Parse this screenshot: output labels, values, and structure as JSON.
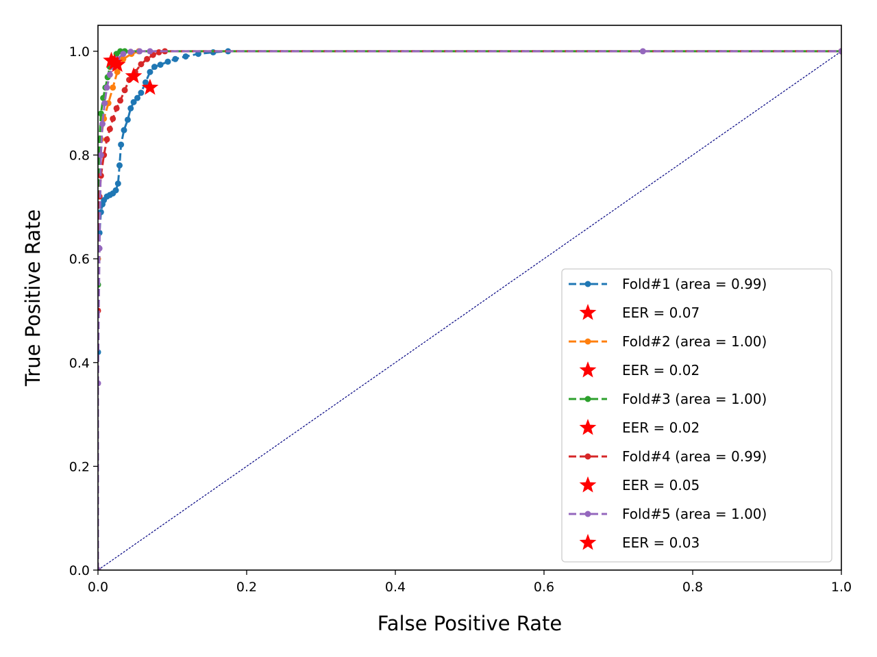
{
  "chart_data": {
    "type": "line",
    "title": "",
    "xlabel": "False Positive Rate",
    "ylabel": "True Positive Rate",
    "xlim": [
      0.0,
      1.0
    ],
    "ylim": [
      0.0,
      1.05
    ],
    "xticks": [
      "0.0",
      "0.2",
      "0.4",
      "0.6",
      "0.8",
      "1.0"
    ],
    "yticks": [
      "0.0",
      "0.2",
      "0.4",
      "0.6",
      "0.8",
      "1.0"
    ],
    "grid": false,
    "legend_position": "bottom-right",
    "diagonal": {
      "x": [
        0,
        1
      ],
      "y": [
        0,
        1
      ],
      "color": "#000080",
      "style": "dashed"
    },
    "series": [
      {
        "name": "Fold#1 (area = 0.99)",
        "color": "#1f77b4",
        "x": [
          0.0,
          0.0,
          0.002,
          0.004,
          0.006,
          0.008,
          0.012,
          0.016,
          0.02,
          0.024,
          0.027,
          0.029,
          0.031,
          0.035,
          0.04,
          0.044,
          0.048,
          0.053,
          0.058,
          0.064,
          0.07,
          0.076,
          0.084,
          0.094,
          0.104,
          0.118,
          0.135,
          0.155,
          0.175,
          1.0
        ],
        "y": [
          0.0,
          0.42,
          0.65,
          0.69,
          0.705,
          0.713,
          0.72,
          0.723,
          0.726,
          0.732,
          0.745,
          0.78,
          0.82,
          0.848,
          0.868,
          0.89,
          0.902,
          0.91,
          0.92,
          0.94,
          0.96,
          0.97,
          0.974,
          0.98,
          0.985,
          0.99,
          0.995,
          0.998,
          1.0,
          1.0
        ]
      },
      {
        "name": "Fold#2 (area = 1.00)",
        "color": "#ff7f0e",
        "x": [
          0.0,
          0.0,
          0.004,
          0.008,
          0.014,
          0.02,
          0.026,
          0.034,
          0.045,
          0.055,
          1.0
        ],
        "y": [
          0.0,
          0.6,
          0.83,
          0.87,
          0.9,
          0.93,
          0.96,
          0.985,
          0.995,
          1.0,
          1.0
        ]
      },
      {
        "name": "Fold#3 (area = 1.00)",
        "color": "#2ca02c",
        "x": [
          0.0,
          0.0,
          0.002,
          0.004,
          0.007,
          0.01,
          0.013,
          0.016,
          0.02,
          0.025,
          0.03,
          0.036,
          1.0
        ],
        "y": [
          0.0,
          0.55,
          0.83,
          0.88,
          0.91,
          0.93,
          0.95,
          0.97,
          0.985,
          0.995,
          1.0,
          1.0,
          1.0
        ]
      },
      {
        "name": "Fold#4 (area = 0.99)",
        "color": "#d62728",
        "x": [
          0.0,
          0.0,
          0.002,
          0.004,
          0.008,
          0.012,
          0.016,
          0.02,
          0.025,
          0.03,
          0.036,
          0.042,
          0.05,
          0.058,
          0.066,
          0.074,
          0.082,
          0.09,
          1.0
        ],
        "y": [
          0.0,
          0.5,
          0.72,
          0.76,
          0.8,
          0.83,
          0.85,
          0.87,
          0.89,
          0.905,
          0.925,
          0.945,
          0.96,
          0.975,
          0.985,
          0.993,
          0.998,
          1.0,
          1.0
        ]
      },
      {
        "name": "Fold#5 (area = 1.00)",
        "color": "#9467bd",
        "x": [
          0.0,
          0.0,
          0.002,
          0.004,
          0.006,
          0.009,
          0.012,
          0.016,
          0.02,
          0.026,
          0.034,
          0.044,
          0.056,
          0.07,
          0.733,
          1.0
        ],
        "y": [
          0.0,
          0.36,
          0.62,
          0.8,
          0.86,
          0.9,
          0.93,
          0.955,
          0.97,
          0.985,
          0.995,
          0.999,
          1.0,
          1.0,
          1.0,
          1.0
        ]
      }
    ],
    "eer": [
      {
        "label": "EER = 0.07",
        "x": 0.07,
        "y": 0.93
      },
      {
        "label": "EER = 0.02",
        "x": 0.022,
        "y": 0.978
      },
      {
        "label": "EER = 0.02",
        "x": 0.018,
        "y": 0.982
      },
      {
        "label": "EER = 0.05",
        "x": 0.048,
        "y": 0.952
      },
      {
        "label": "EER = 0.03",
        "x": 0.026,
        "y": 0.974
      }
    ],
    "eer_color": "#ff0000"
  }
}
